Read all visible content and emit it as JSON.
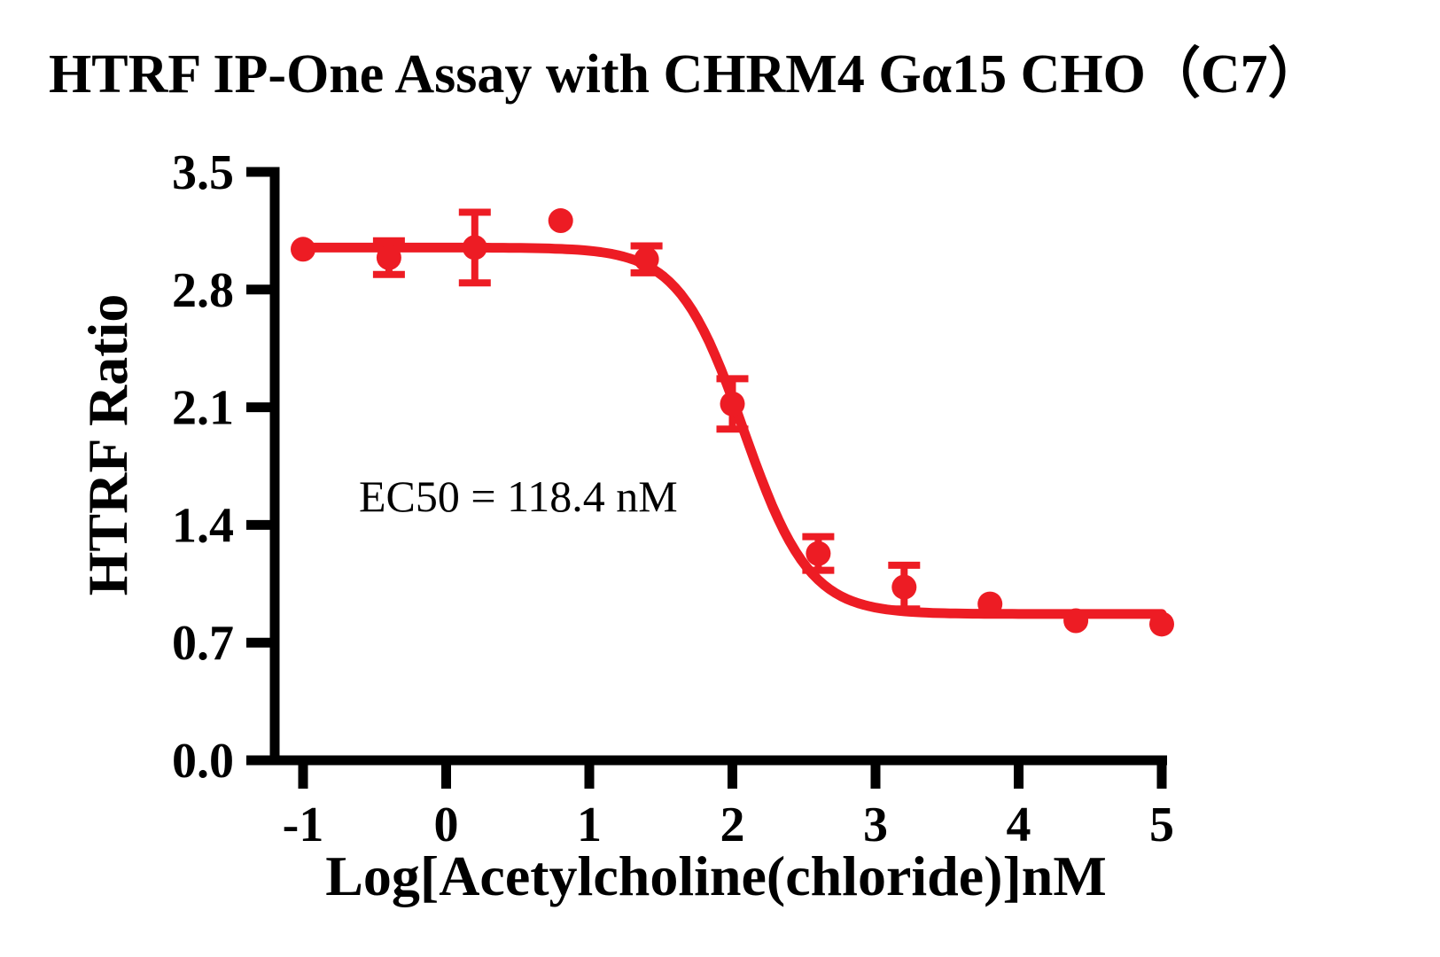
{
  "figure": {
    "background": "#FFFFFF"
  },
  "colors": {
    "accent": "#ED1C24",
    "axis": "#000000",
    "text": "#000000",
    "background": "#FFFFFF"
  },
  "chart_data": {
    "type": "scatter",
    "title": "HTRF IP-One Assay with CHRM4 Gα15 CHO（C7）",
    "xlabel": "Log[Acetylcholine(chloride)]nM",
    "ylabel": "HTRF Ratio",
    "annotation": "EC50 = 118.4 nM",
    "ec50_nM": 118.4,
    "xlim": [
      -1,
      5
    ],
    "ylim": [
      0.0,
      3.5
    ],
    "x_ticks": [
      "-1",
      "0",
      "1",
      "2",
      "3",
      "4",
      "5"
    ],
    "y_ticks": [
      "0.0",
      "0.7",
      "1.4",
      "2.1",
      "2.8",
      "3.5"
    ],
    "grid": false,
    "legend_position": "none",
    "series": [
      {
        "name": "Acetylcholine (chloride)",
        "color": "#ED1C24",
        "marker": "circle",
        "points": [
          {
            "x": -1.0,
            "y": 3.04,
            "err": 0
          },
          {
            "x": -0.4,
            "y": 2.99,
            "err": 0.1
          },
          {
            "x": 0.2,
            "y": 3.05,
            "err": 0.21
          },
          {
            "x": 0.8,
            "y": 3.21,
            "err": 0
          },
          {
            "x": 1.4,
            "y": 2.98,
            "err": 0.08
          },
          {
            "x": 2.0,
            "y": 2.12,
            "err": 0.15
          },
          {
            "x": 2.6,
            "y": 1.23,
            "err": 0.1
          },
          {
            "x": 3.2,
            "y": 1.03,
            "err": 0.13
          },
          {
            "x": 3.8,
            "y": 0.93,
            "err": 0
          },
          {
            "x": 4.4,
            "y": 0.83,
            "err": 0
          },
          {
            "x": 5.0,
            "y": 0.81,
            "err": 0
          }
        ]
      }
    ],
    "fit_curve": {
      "model": "four-parameter-logistic",
      "top": 3.05,
      "bottom": 0.87,
      "logEC50": 2.08,
      "hill_slope": -1.9
    }
  }
}
